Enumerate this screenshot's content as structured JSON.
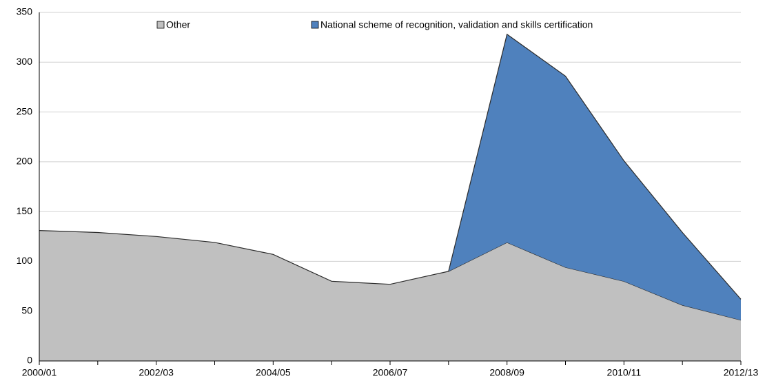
{
  "chart_data": {
    "type": "area",
    "stacked": true,
    "categories": [
      "2000/01",
      null,
      "2002/03",
      null,
      "2004/05",
      null,
      "2006/07",
      null,
      "2008/09",
      null,
      "2010/11",
      null,
      "2012/13"
    ],
    "series": [
      {
        "name": "Other",
        "color": "#c0c0c0",
        "values": [
          131,
          129,
          125,
          119,
          107,
          80,
          77,
          90,
          119,
          94,
          80,
          56,
          41
        ]
      },
      {
        "name": "National scheme of recognition, validation and skills certification",
        "color": "#4f81bd",
        "values": [
          null,
          null,
          null,
          null,
          null,
          null,
          null,
          0,
          209,
          192,
          121,
          73,
          21
        ]
      }
    ],
    "ylim": [
      0,
      350
    ],
    "yticks": [
      0,
      50,
      100,
      150,
      200,
      250,
      300,
      350
    ],
    "grid": true,
    "legend": "top"
  }
}
